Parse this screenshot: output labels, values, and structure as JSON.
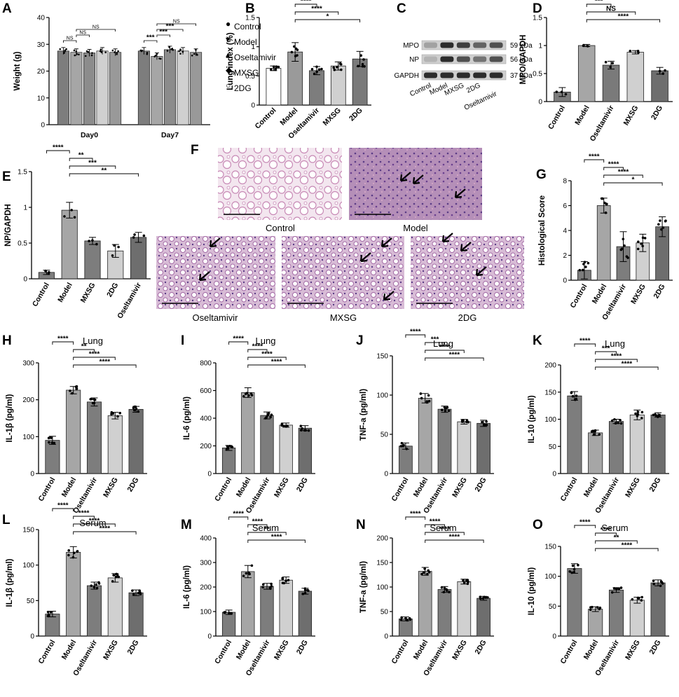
{
  "figure": {
    "panel_letters": [
      "A",
      "B",
      "C",
      "D",
      "E",
      "F",
      "G",
      "H",
      "I",
      "J",
      "K",
      "L",
      "M",
      "N",
      "O"
    ]
  },
  "western_blot": {
    "rows": [
      {
        "label": "MPO",
        "size": "59 kDa"
      },
      {
        "label": "NP",
        "size": "56 kDa"
      },
      {
        "label": "GAPDH",
        "size": "37 kDa"
      }
    ],
    "lanes": [
      "Control",
      "Model",
      "MXSG",
      "2DG",
      "Oseltamivir"
    ]
  },
  "histology": {
    "captions": [
      "Control",
      "Model",
      "Oseltamivir",
      "MXSG",
      "2DG"
    ]
  },
  "chart_data": [
    {
      "panel": "A",
      "type": "bar",
      "title": "",
      "xlabel": "",
      "ylabel": "Weight (g)",
      "ylim": [
        0,
        40
      ],
      "yticks": [
        0,
        10,
        20,
        30,
        40
      ],
      "groups": [
        "Day0",
        "Day7"
      ],
      "legend": [
        "Control",
        "Model",
        "Oseltamivir",
        "MXSG",
        "2DG"
      ],
      "series": [
        {
          "name": "Control",
          "values": [
            27.5,
            27.5
          ],
          "color": "#7d7d7d"
        },
        {
          "name": "Model",
          "values": [
            27.0,
            25.5
          ],
          "color": "#a6a6a6"
        },
        {
          "name": "Oseltamivir",
          "values": [
            26.8,
            28.0
          ],
          "color": "#8c8c8c"
        },
        {
          "name": "MXSG",
          "values": [
            27.5,
            27.5
          ],
          "color": "#d0d0d0"
        },
        {
          "name": "2DG",
          "values": [
            27.0,
            27.0
          ],
          "color": "#999999"
        }
      ],
      "significance": [
        "NS",
        "NS",
        "NS",
        "***",
        "***",
        "***",
        "NS"
      ]
    },
    {
      "panel": "B",
      "type": "bar",
      "title": "",
      "xlabel": "",
      "ylabel": "Lung index (%)",
      "ylim": [
        0,
        1.5
      ],
      "yticks": [
        0.0,
        0.5,
        1.0,
        1.5
      ],
      "categories": [
        "Control",
        "Model",
        "Oseltamivir",
        "MXSG",
        "2DG"
      ],
      "values": [
        0.63,
        0.91,
        0.59,
        0.67,
        0.79
      ],
      "errors": [
        0.04,
        0.16,
        0.07,
        0.07,
        0.13
      ],
      "colors": [
        "#ffffff",
        "#9a9a9a",
        "#7d7d7d",
        "#d0d0d0",
        "#7a7a7a"
      ],
      "significance": [
        "****",
        "****",
        "****",
        "*"
      ]
    },
    {
      "panel": "D",
      "type": "bar",
      "title": "",
      "xlabel": "",
      "ylabel": "MPO/GAPDH",
      "ylim": [
        0,
        1.5
      ],
      "yticks": [
        0.0,
        0.5,
        1.0,
        1.5
      ],
      "categories": [
        "Control",
        "Model",
        "Oseltamivir",
        "MXSG",
        "2DG"
      ],
      "values": [
        0.17,
        1.0,
        0.65,
        0.88,
        0.55
      ],
      "errors": [
        0.08,
        0.02,
        0.07,
        0.03,
        0.06
      ],
      "colors": [
        "#7d7d7d",
        "#a6a6a6",
        "#7a7a7a",
        "#d0d0d0",
        "#6e6e6e"
      ],
      "significance": [
        "****",
        "***",
        "NS",
        "****"
      ]
    },
    {
      "panel": "E",
      "type": "bar",
      "title": "",
      "xlabel": "",
      "ylabel": "NP/GAPDH",
      "ylim": [
        0,
        1.5
      ],
      "yticks": [
        0.0,
        0.5,
        1.0,
        1.5
      ],
      "categories": [
        "Control",
        "Model",
        "MXSG",
        "2DG",
        "Oseltamivir"
      ],
      "values": [
        0.09,
        0.96,
        0.53,
        0.39,
        0.58
      ],
      "errors": [
        0.03,
        0.11,
        0.05,
        0.09,
        0.07
      ],
      "colors": [
        "#7d7d7d",
        "#a6a6a6",
        "#7d7d7d",
        "#d0d0d0",
        "#6e6e6e"
      ],
      "significance": [
        "****",
        "**",
        "***",
        "**"
      ]
    },
    {
      "panel": "G",
      "type": "bar",
      "title": "",
      "xlabel": "",
      "ylabel": "Histological Score",
      "ylim": [
        0,
        8
      ],
      "yticks": [
        0,
        2,
        4,
        6,
        8
      ],
      "categories": [
        "Control",
        "Model",
        "Oseltamivir",
        "MXSG",
        "2DG"
      ],
      "values": [
        0.8,
        6.0,
        2.7,
        3.0,
        4.3
      ],
      "errors": [
        0.7,
        0.6,
        1.2,
        0.7,
        0.8
      ],
      "colors": [
        "#7d7d7d",
        "#a6a6a6",
        "#7d7d7d",
        "#d0d0d0",
        "#6e6e6e"
      ],
      "significance": [
        "****",
        "****",
        "****",
        "*"
      ]
    },
    {
      "panel": "H",
      "type": "bar",
      "title": "Lung",
      "xlabel": "",
      "ylabel": "IL-1β (pg/ml)",
      "ylim": [
        0,
        300
      ],
      "yticks": [
        0,
        100,
        200,
        300
      ],
      "categories": [
        "Control",
        "Model",
        "Oseltamivir",
        "MXSG",
        "2DG"
      ],
      "values": [
        90,
        226,
        194,
        157,
        174
      ],
      "errors": [
        11,
        10,
        11,
        9,
        8
      ],
      "colors": [
        "#7d7d7d",
        "#a6a6a6",
        "#7d7d7d",
        "#d0d0d0",
        "#6e6e6e"
      ],
      "significance": [
        "****",
        "**",
        "****",
        "****"
      ]
    },
    {
      "panel": "I",
      "type": "bar",
      "title": "Lung",
      "xlabel": "",
      "ylabel": "IL-6 (pg/ml)",
      "ylim": [
        0,
        800
      ],
      "yticks": [
        0,
        200,
        400,
        600,
        800
      ],
      "categories": [
        "Control",
        "Model",
        "Oseltamivir",
        "MXSG",
        "2DG"
      ],
      "values": [
        185,
        585,
        420,
        350,
        328
      ],
      "errors": [
        18,
        35,
        25,
        15,
        18
      ],
      "colors": [
        "#7d7d7d",
        "#a6a6a6",
        "#7d7d7d",
        "#d0d0d0",
        "#6e6e6e"
      ],
      "significance": [
        "****",
        "****",
        "****",
        "****"
      ]
    },
    {
      "panel": "J",
      "type": "bar",
      "title": "Lung",
      "xlabel": "",
      "ylabel": "TNF-a (pg/ml)",
      "ylim": [
        0,
        150
      ],
      "yticks": [
        0,
        50,
        100,
        150
      ],
      "categories": [
        "Control",
        "Model",
        "Oseltamivir",
        "MXSG",
        "2DG"
      ],
      "values": [
        35,
        96,
        82,
        66,
        64
      ],
      "errors": [
        4,
        6,
        4,
        3,
        4
      ],
      "colors": [
        "#7d7d7d",
        "#a6a6a6",
        "#7d7d7d",
        "#d0d0d0",
        "#6e6e6e"
      ],
      "significance": [
        "****",
        "***",
        "****",
        "****"
      ]
    },
    {
      "panel": "K",
      "type": "bar",
      "title": "Lung",
      "xlabel": "",
      "ylabel": "IL-10 (pg/ml)",
      "ylim": [
        0,
        200
      ],
      "yticks": [
        0,
        50,
        100,
        150,
        200
      ],
      "categories": [
        "Control",
        "Model",
        "Oseltamivir",
        "MXSG",
        "2DG"
      ],
      "values": [
        143,
        75,
        96,
        108,
        108
      ],
      "errors": [
        8,
        5,
        4,
        9,
        4
      ],
      "colors": [
        "#7d7d7d",
        "#a6a6a6",
        "#7d7d7d",
        "#d0d0d0",
        "#6e6e6e"
      ],
      "significance": [
        "****",
        "***",
        "****",
        "****"
      ]
    },
    {
      "panel": "L",
      "type": "bar",
      "title": "Serum",
      "xlabel": "",
      "ylabel": "IL-1β (pg/ml)",
      "ylim": [
        0,
        150
      ],
      "yticks": [
        0,
        50,
        100,
        150
      ],
      "categories": [
        "Control",
        "Model",
        "Oseltamivir",
        "MXSG",
        "2DG"
      ],
      "values": [
        31,
        118,
        71,
        82,
        61
      ],
      "errors": [
        4,
        8,
        5,
        6,
        4
      ],
      "colors": [
        "#7d7d7d",
        "#a6a6a6",
        "#7d7d7d",
        "#d0d0d0",
        "#6e6e6e"
      ],
      "significance": [
        "****",
        "****",
        "****",
        "****"
      ]
    },
    {
      "panel": "M",
      "type": "bar",
      "title": "Serum",
      "xlabel": "",
      "ylabel": "IL-6 (pg/ml)",
      "ylim": [
        0,
        400
      ],
      "yticks": [
        0,
        100,
        200,
        300,
        400
      ],
      "categories": [
        "Control",
        "Model",
        "Oseltamivir",
        "MXSG",
        "2DG"
      ],
      "values": [
        97,
        263,
        203,
        228,
        183
      ],
      "errors": [
        9,
        25,
        12,
        13,
        12
      ],
      "colors": [
        "#7d7d7d",
        "#a6a6a6",
        "#7d7d7d",
        "#d0d0d0",
        "#6e6e6e"
      ],
      "significance": [
        "****",
        "****",
        "**",
        "****"
      ]
    },
    {
      "panel": "N",
      "type": "bar",
      "title": "Serum",
      "xlabel": "",
      "ylabel": "TNF-a (pg/ml)",
      "ylim": [
        0,
        200
      ],
      "yticks": [
        0,
        50,
        100,
        150,
        200
      ],
      "categories": [
        "Control",
        "Model",
        "Oseltamivir",
        "MXSG",
        "2DG"
      ],
      "values": [
        35,
        132,
        95,
        111,
        77
      ],
      "errors": [
        4,
        8,
        6,
        5,
        4
      ],
      "colors": [
        "#7d7d7d",
        "#a6a6a6",
        "#7d7d7d",
        "#d0d0d0",
        "#6e6e6e"
      ],
      "significance": [
        "****",
        "****",
        "****",
        "****"
      ]
    },
    {
      "panel": "O",
      "type": "bar",
      "title": "Serum",
      "xlabel": "",
      "ylabel": "IL-10 (pg/ml)",
      "ylim": [
        0,
        150
      ],
      "yticks": [
        0,
        50,
        100,
        150
      ],
      "categories": [
        "Control",
        "Model",
        "Oseltamivir",
        "MXSG",
        "2DG"
      ],
      "values": [
        113,
        45,
        77,
        60,
        89
      ],
      "errors": [
        8,
        4,
        4,
        5,
        5
      ],
      "colors": [
        "#7d7d7d",
        "#a6a6a6",
        "#7d7d7d",
        "#d0d0d0",
        "#6e6e6e"
      ],
      "significance": [
        "****",
        "****",
        "**",
        "****"
      ]
    }
  ]
}
